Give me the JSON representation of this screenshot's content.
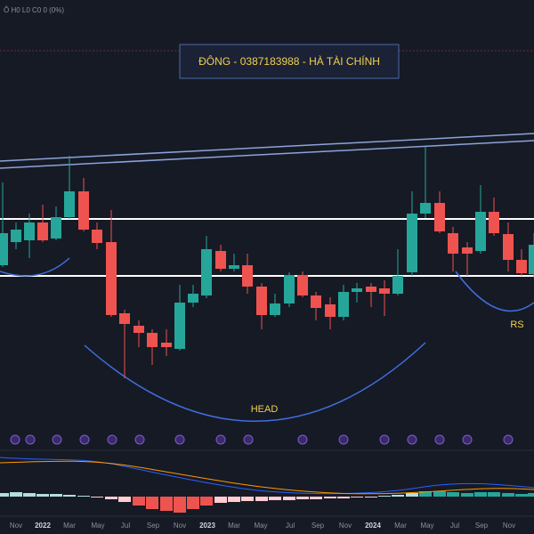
{
  "header": {
    "ohlc": "Ô H0 L0 C0 0 (0%)"
  },
  "banner": {
    "text": "ĐÔNG - 0387183988 - HÀ TÀI CHÍNH"
  },
  "annotations": {
    "head": "HEAD",
    "rs": "RS"
  },
  "time_axis": {
    "labels": [
      "Nov",
      "2022",
      "Mar",
      "May",
      "Jul",
      "Sep",
      "Nov",
      "2023",
      "Mar",
      "May",
      "Jul",
      "Sep",
      "Nov",
      "2024",
      "Mar",
      "May",
      "Jul",
      "Sep",
      "Nov"
    ]
  }
}
